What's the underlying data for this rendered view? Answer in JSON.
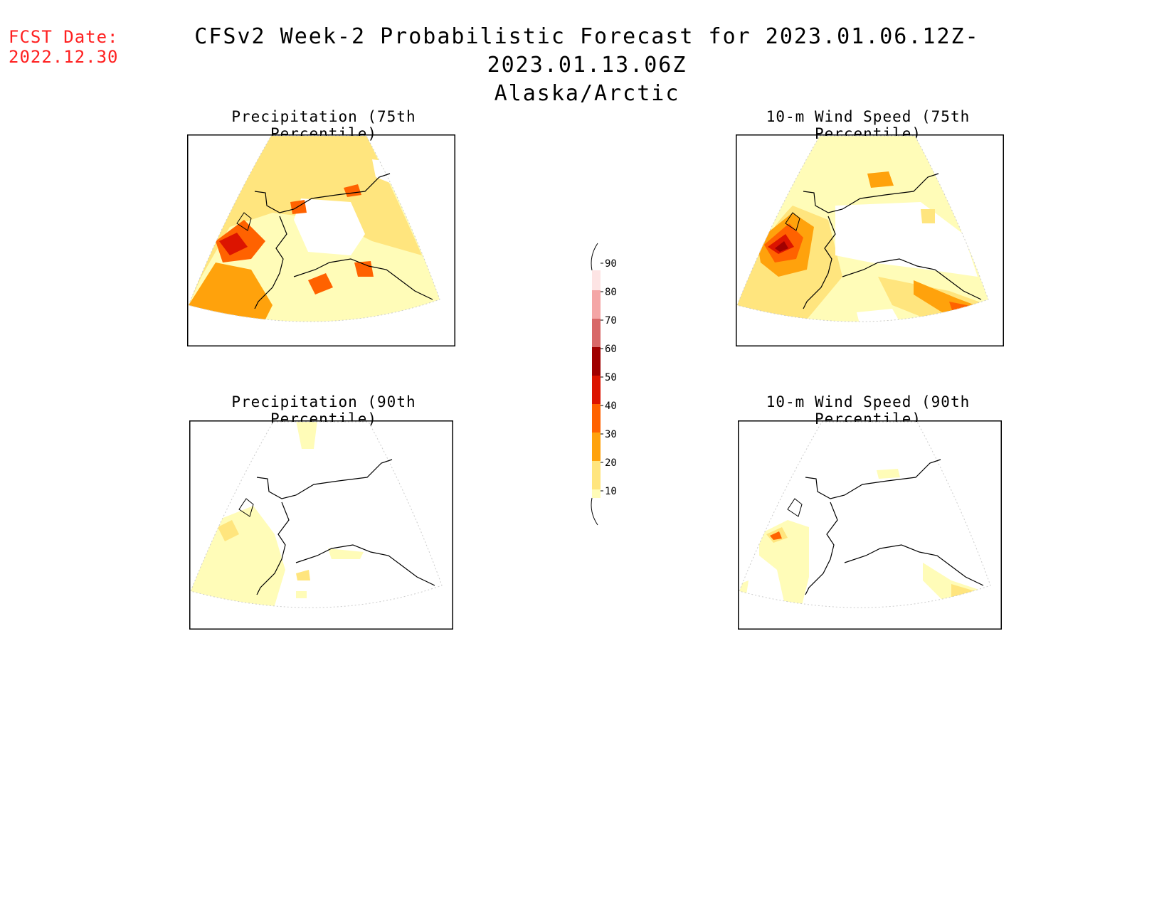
{
  "header": {
    "fcst_label": "FCST Date:",
    "fcst_date": "2022.12.30",
    "title": "CFSv2 Week-2 Probabilistic Forecast for 2023.01.06.12Z-2023.01.13.06Z",
    "region": "Alaska/Arctic"
  },
  "panels": [
    {
      "title": "Precipitation (75th Percentile)"
    },
    {
      "title": "10-m Wind Speed (75th Percentile)"
    },
    {
      "title": "Precipitation (90th Percentile)"
    },
    {
      "title": "10-m Wind Speed (90th Percentile)"
    }
  ],
  "colorbar": {
    "levels": [
      "10",
      "20",
      "30",
      "40",
      "50",
      "60",
      "70",
      "80",
      "90"
    ],
    "colors": {
      "10-20": "#fffcb8",
      "20-30": "#ffe57e",
      "30-40": "#ffa20c",
      "40-50": "#ff6200",
      "50-60": "#dc1400",
      "60-70": "#a00000",
      "70-80": "#d86868",
      "80-90": "#f4a6a6",
      "90+": "#fde4e4"
    }
  }
}
